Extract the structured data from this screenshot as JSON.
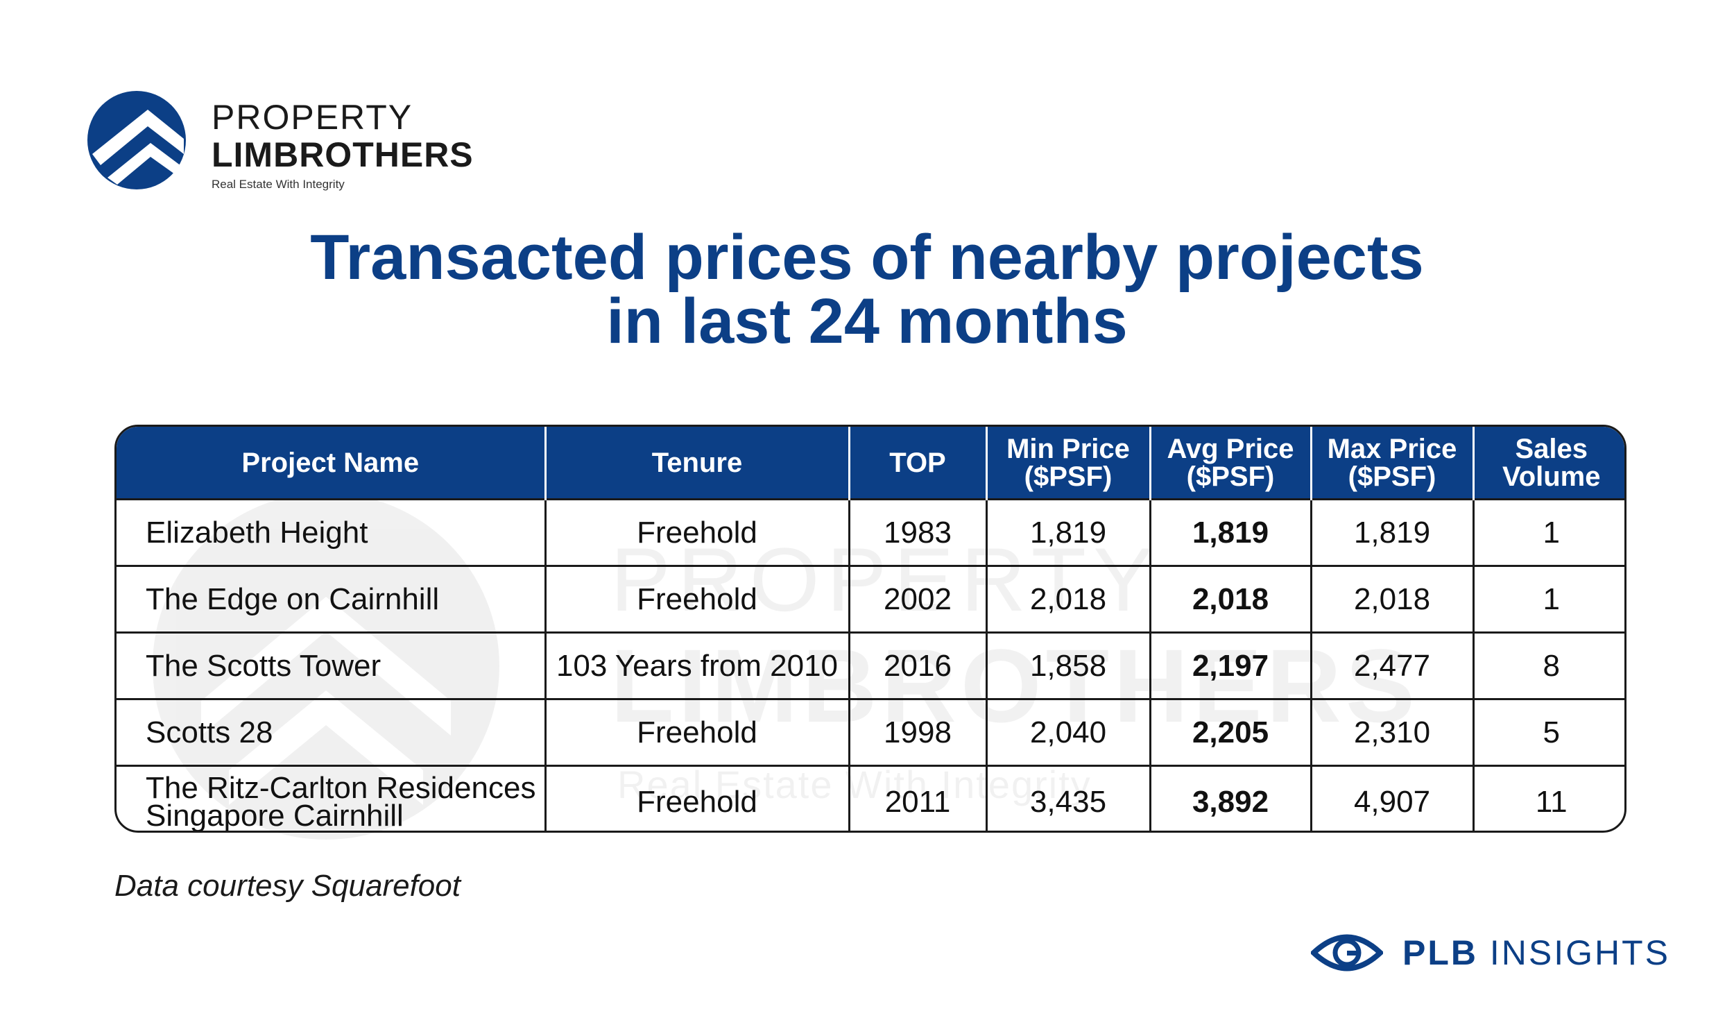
{
  "brand": {
    "line1": "PROPERTY",
    "line2": "LIMBROTHERS",
    "tagline": "Real Estate With Integrity",
    "color": "#0c3f86"
  },
  "watermark": {
    "line1": "PROPERTY",
    "line2": "LIMBROTHERS",
    "tagline": "Real Estate With Integrity"
  },
  "title": {
    "line1": "Transacted prices of nearby projects",
    "line2": "in last 24 months"
  },
  "chart_data": {
    "type": "table",
    "columns": [
      "Project Name",
      "Tenure",
      "TOP",
      "Min Price ($PSF)",
      "Avg Price ($PSF)",
      "Max Price ($PSF)",
      "Sales Volume"
    ],
    "header": [
      {
        "l1": "Project Name",
        "l2": ""
      },
      {
        "l1": "Tenure",
        "l2": ""
      },
      {
        "l1": "TOP",
        "l2": ""
      },
      {
        "l1": "Min Price",
        "l2": "($PSF)"
      },
      {
        "l1": "Avg Price",
        "l2": "($PSF)"
      },
      {
        "l1": "Max Price",
        "l2": "($PSF)"
      },
      {
        "l1": "Sales",
        "l2": "Volume"
      }
    ],
    "rows": [
      {
        "name": [
          "Elizabeth Height"
        ],
        "tenure": "Freehold",
        "top": "1983",
        "min": "1,819",
        "avg": "1,819",
        "max": "1,819",
        "volume": "1"
      },
      {
        "name": [
          "The Edge on Cairnhill"
        ],
        "tenure": "Freehold",
        "top": "2002",
        "min": "2,018",
        "avg": "2,018",
        "max": "2,018",
        "volume": "1"
      },
      {
        "name": [
          "The Scotts Tower"
        ],
        "tenure": "103 Years from 2010",
        "top": "2016",
        "min": "1,858",
        "avg": "2,197",
        "max": "2,477",
        "volume": "8"
      },
      {
        "name": [
          "Scotts 28"
        ],
        "tenure": "Freehold",
        "top": "1998",
        "min": "2,040",
        "avg": "2,205",
        "max": "2,310",
        "volume": "5"
      },
      {
        "name": [
          "The Ritz-Carlton Residences",
          "Singapore Cairnhill"
        ],
        "tenure": "Freehold",
        "top": "2011",
        "min": "3,435",
        "avg": "3,892",
        "max": "4,907",
        "volume": "11"
      }
    ],
    "header_color": "#0c3f86",
    "emphasized_column": "Avg Price ($PSF)"
  },
  "footnote": "Data courtesy Squarefoot",
  "insights": {
    "bold": "PLB",
    "rest": " INSIGHTS"
  }
}
